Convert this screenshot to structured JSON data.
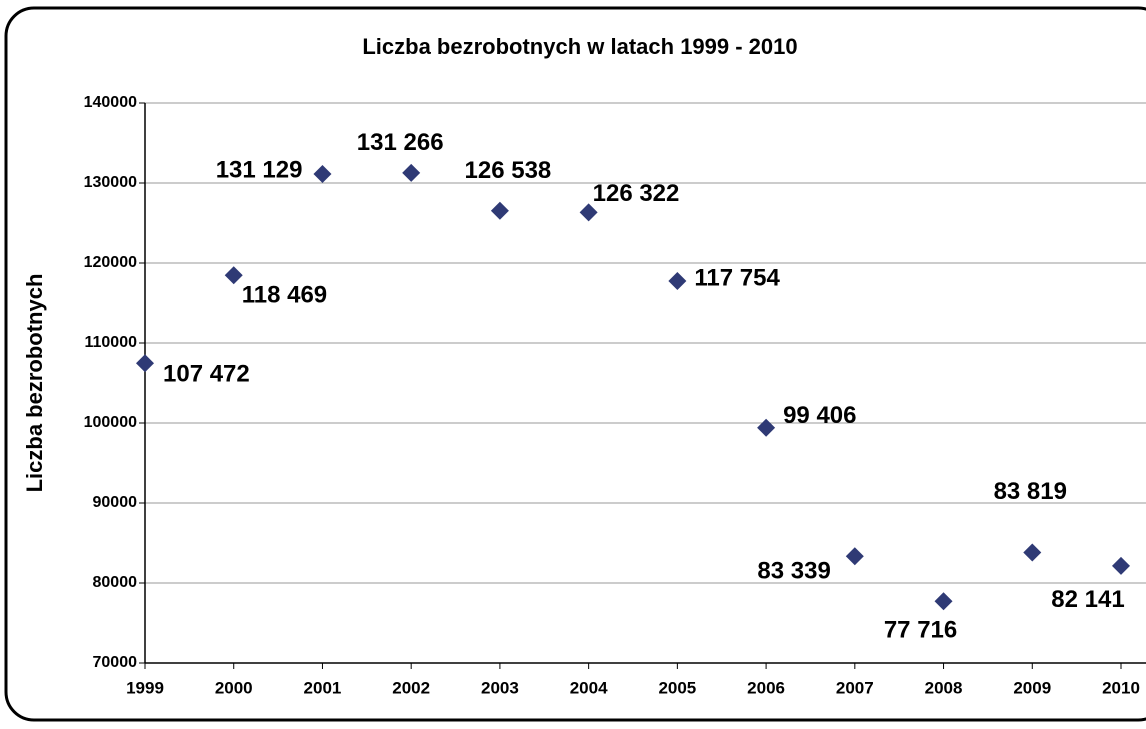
{
  "chart_data": {
    "type": "line",
    "title": "Liczba bezrobotnych w latach 1999 - 2010",
    "y_label": "Liczba bezrobotnych",
    "categories": [
      "1999",
      "2000",
      "2001",
      "2002",
      "2003",
      "2004",
      "2005",
      "2006",
      "2007",
      "2008",
      "2009",
      "2010"
    ],
    "series": [
      {
        "name": "Liczba bezrobotnych",
        "color": "#2f3a75",
        "values": [
          107472,
          118469,
          131129,
          131266,
          126538,
          126322,
          117754,
          99406,
          83339,
          77716,
          83819,
          82141
        ],
        "value_labels": [
          "107 472",
          "118 469",
          "131 129",
          "131 266",
          "126 538",
          "126 322",
          "117 754",
          "99 406",
          "83 339",
          "77 716",
          "83 819",
          "82 141"
        ]
      }
    ],
    "ylim": [
      70000,
      140000
    ],
    "yticks": [
      70000,
      80000,
      90000,
      100000,
      110000,
      120000,
      130000,
      140000
    ],
    "grid": true
  }
}
